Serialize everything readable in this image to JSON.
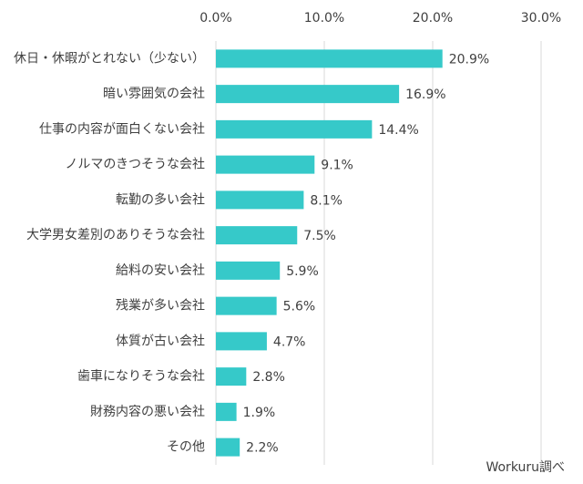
{
  "chart_data": {
    "type": "bar",
    "orientation": "horizontal",
    "categories": [
      "休日・休暇がとれない（少ない）",
      "暗い雰囲気の会社",
      "仕事の内容が面白くない会社",
      "ノルマのきつそうな会社",
      "転勤の多い会社",
      "大学男女差別のありそうな会社",
      "給料の安い会社",
      "残業が多い会社",
      "体質が古い会社",
      "歯車になりそうな会社",
      "財務内容の悪い会社",
      "その他"
    ],
    "values": [
      20.9,
      16.9,
      14.4,
      9.1,
      8.1,
      7.5,
      5.9,
      5.6,
      4.7,
      2.8,
      1.9,
      2.2
    ],
    "value_labels": [
      "20.9%",
      "16.9%",
      "14.4%",
      "9.1%",
      "8.1%",
      "7.5%",
      "5.9%",
      "5.6%",
      "4.7%",
      "2.8%",
      "1.9%",
      "2.2%"
    ],
    "color": "#36c9c9",
    "xlim": [
      0,
      30
    ],
    "xticks": [
      {
        "value": 0,
        "label": "0.0%"
      },
      {
        "value": 10,
        "label": "10.0%"
      },
      {
        "value": 20,
        "label": "20.0%"
      },
      {
        "value": 30,
        "label": "30.0%"
      }
    ],
    "grid": true,
    "source": "Workuru調べ"
  }
}
